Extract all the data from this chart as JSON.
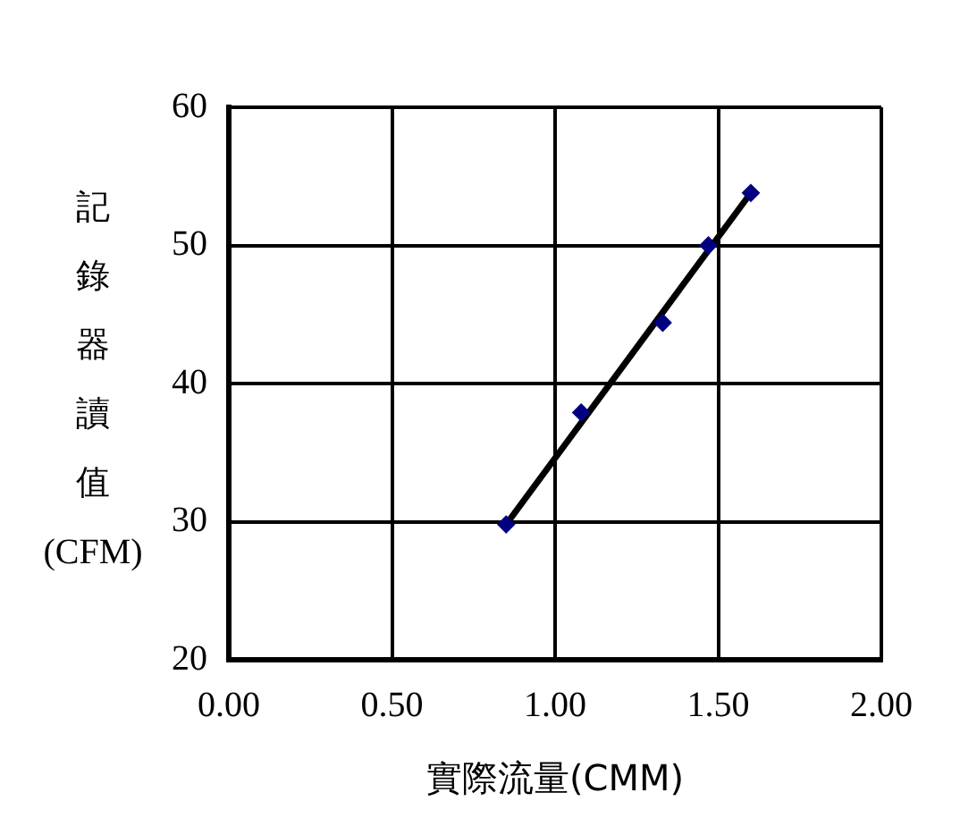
{
  "chart_data": {
    "type": "scatter",
    "xlabel": "實際流量(CMM)",
    "ylabel": "記錄器讀值(CFM)",
    "xlim": [
      0,
      2
    ],
    "xticks": [
      {
        "value": 0,
        "label": "0.00"
      },
      {
        "value": 0.5,
        "label": "0.50"
      },
      {
        "value": 1,
        "label": "1.00"
      },
      {
        "value": 1.5,
        "label": "1.50"
      },
      {
        "value": 2,
        "label": "2.00"
      }
    ],
    "ylim": [
      20,
      60
    ],
    "yticks": [
      20,
      30,
      40,
      50,
      60
    ],
    "grid": true,
    "legend": false,
    "series": [
      {
        "color": "#000080",
        "marker": "diamond",
        "x": [
          0.85,
          1.08,
          1.33,
          1.47,
          1.6
        ],
        "values": [
          29.8,
          37.9,
          44.4,
          50.0,
          53.8
        ]
      },
      {
        "type": "line",
        "color": "#000000",
        "marker": "none",
        "x": [
          0.85,
          1.6
        ],
        "values": [
          29.8,
          53.8
        ]
      }
    ]
  }
}
